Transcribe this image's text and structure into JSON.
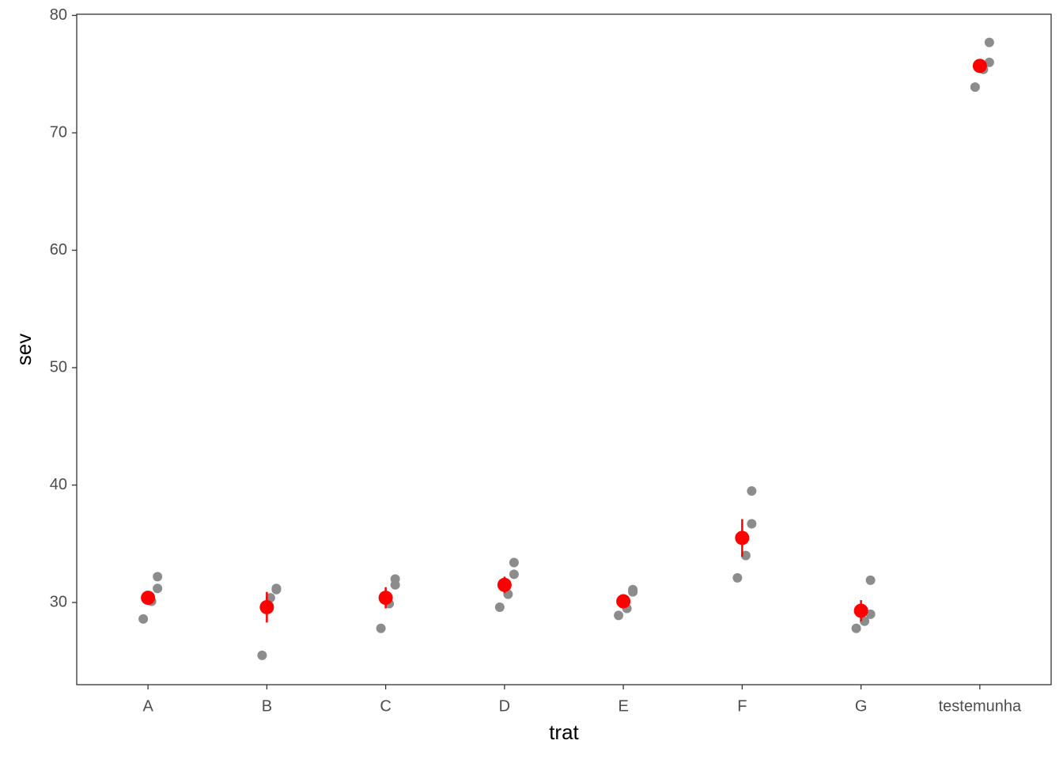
{
  "chart_data": {
    "type": "dotplot",
    "x_label": "trat",
    "y_label": "sev",
    "categories": [
      "A",
      "B",
      "C",
      "D",
      "E",
      "F",
      "G",
      "testemunha"
    ],
    "observations": [
      [
        31.2,
        32.2,
        30.1,
        28.6
      ],
      [
        31.2,
        31.1,
        30.4,
        25.5
      ],
      [
        32.0,
        31.5,
        29.9,
        27.8
      ],
      [
        32.4,
        33.4,
        30.7,
        29.6
      ],
      [
        31.1,
        30.9,
        29.5,
        28.9
      ],
      [
        39.5,
        36.7,
        34.0,
        32.1
      ],
      [
        31.9,
        29.0,
        28.4,
        27.8
      ],
      [
        77.7,
        76.0,
        75.4,
        73.9
      ]
    ],
    "observation_color": "#8c8c8c",
    "means": [
      30.4,
      29.6,
      30.4,
      31.5,
      30.1,
      35.5,
      29.3,
      75.7
    ],
    "errors": [
      0.5,
      1.3,
      0.9,
      0.7,
      0.5,
      1.6,
      0.9,
      0.5
    ],
    "mean_color": "#ff0000",
    "ylim": [
      23.0,
      80.1
    ],
    "yticks": [
      30,
      40,
      50,
      60,
      70,
      80
    ]
  }
}
